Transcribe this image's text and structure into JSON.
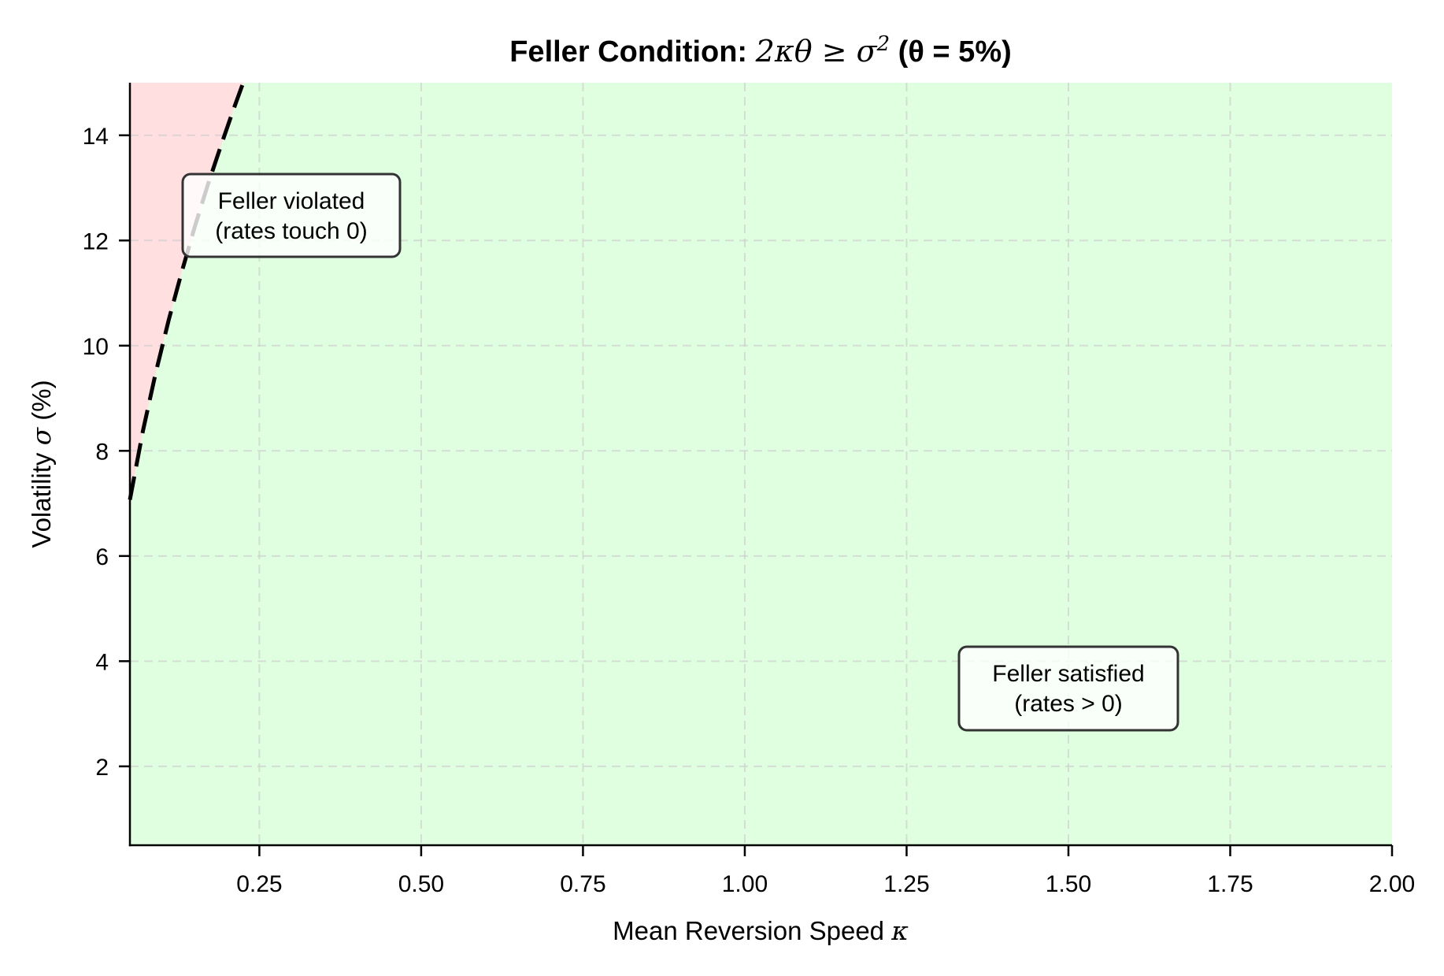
{
  "chart_data": {
    "type": "area",
    "title": "Feller Condition: 2κθ ≥ σ² (θ = 5%)",
    "title_parts": {
      "bold": "Feller Condition: ",
      "math": "2κθ ≥ σ",
      "sup": "2",
      "tail": " (θ = 5%)"
    },
    "xlabel": "Mean Reversion Speed κ",
    "xlabel_parts": {
      "text": "Mean Reversion Speed ",
      "math": "κ"
    },
    "ylabel": "Volatility σ (%)",
    "ylabel_parts": {
      "text1": "Volatility ",
      "math": "σ",
      "text2": " (%)"
    },
    "xlim": [
      0.05,
      2.0
    ],
    "ylim": [
      0.5,
      15
    ],
    "x_ticks": [
      0.25,
      0.5,
      0.75,
      1.0,
      1.25,
      1.5,
      1.75,
      2.0
    ],
    "x_tick_labels": [
      "0.25",
      "0.50",
      "0.75",
      "1.00",
      "1.25",
      "1.50",
      "1.75",
      "2.00"
    ],
    "y_ticks": [
      2,
      4,
      6,
      8,
      10,
      12,
      14
    ],
    "y_tick_labels": [
      "2",
      "4",
      "6",
      "8",
      "10",
      "12",
      "14"
    ],
    "grid": true,
    "theta": 0.05,
    "boundary": {
      "name": "σ = √(2κθ)",
      "style": "dashed",
      "color": "#000000",
      "x": [
        0.05,
        0.07,
        0.09,
        0.11,
        0.13,
        0.15,
        0.17,
        0.19,
        0.21,
        0.225
      ],
      "y": [
        7.07,
        8.37,
        9.49,
        10.49,
        11.4,
        12.25,
        13.04,
        13.78,
        14.49,
        15.0
      ]
    },
    "regions": [
      {
        "name": "Feller violated",
        "color": "#FFDFE0",
        "side": "above boundary"
      },
      {
        "name": "Feller satisfied",
        "color": "#DFFFE0",
        "side": "below boundary"
      }
    ],
    "annotations": [
      {
        "lines": [
          "Feller violated",
          "(rates touch 0)"
        ],
        "x": 0.3,
        "y": 12.7
      },
      {
        "lines": [
          "Feller satisfied",
          "(rates > 0)"
        ],
        "x": 1.5,
        "y": 3.7
      }
    ]
  },
  "colors": {
    "violated_fill": "#FFDFE0",
    "satisfied_fill": "#DFFFE0",
    "grid": "#cfcfcf",
    "box_border": "#333333",
    "curve": "#000000"
  }
}
